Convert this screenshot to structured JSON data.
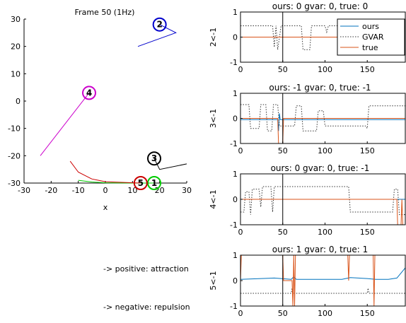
{
  "figure": {
    "note_positive": "-> positive: attraction",
    "note_negative": "-> negative: repulsion"
  },
  "chart_data": [
    {
      "type": "line",
      "title": "Frame 50 (1Hz)",
      "xlabel": "x",
      "ylabel": "",
      "xlim": [
        -30,
        30
      ],
      "ylim": [
        -30,
        30
      ],
      "xticks": [
        -30,
        -20,
        -10,
        0,
        10,
        20,
        30
      ],
      "yticks": [
        -30,
        -20,
        -10,
        0,
        10,
        20,
        30
      ],
      "agents": [
        {
          "id": "1",
          "color": "#00cc00",
          "position": [
            18,
            -30
          ],
          "trail": [
            [
              -10,
              -29
            ],
            [
              -5,
              -29.6
            ],
            [
              0,
              -29.9
            ],
            [
              10,
              -30
            ],
            [
              18,
              -30
            ]
          ]
        },
        {
          "id": "2",
          "color": "#0000cc",
          "position": [
            20,
            28
          ],
          "trail": [
            [
              12,
              20
            ],
            [
              26,
              25
            ],
            [
              20,
              28
            ]
          ]
        },
        {
          "id": "3",
          "color": "#000000",
          "position": [
            18,
            -21
          ],
          "trail": [
            [
              30,
              -23
            ],
            [
              20,
              -25
            ],
            [
              18,
              -21
            ]
          ]
        },
        {
          "id": "4",
          "color": "#cc00cc",
          "position": [
            -6,
            3
          ],
          "trail": [
            [
              -24,
              -20
            ],
            [
              -6,
              3
            ]
          ]
        },
        {
          "id": "5",
          "color": "#cc0000",
          "position": [
            13,
            -30
          ],
          "trail": [
            [
              -13,
              -22
            ],
            [
              -10,
              -26
            ],
            [
              -5,
              -28.5
            ],
            [
              0,
              -29.5
            ],
            [
              13,
              -30
            ]
          ]
        }
      ]
    },
    {
      "type": "line",
      "title": "ours: 0 gvar: 0, true: 0",
      "ylabel": "2<-1",
      "xlim": [
        0,
        195
      ],
      "ylim": [
        -1,
        1
      ],
      "xticks": [
        0,
        50,
        100,
        150
      ],
      "yticks": [
        -1,
        0,
        1
      ],
      "current_frame": 50,
      "legend": {
        "placement": "top-right",
        "entries": [
          "ours",
          "GVAR",
          "true"
        ]
      },
      "series": [
        {
          "name": "ours",
          "color": "#0072bd",
          "dash": "solid",
          "points": [
            [
              0,
              0
            ],
            [
              195,
              0
            ]
          ]
        },
        {
          "name": "GVAR",
          "color": "#333333",
          "dash": "dotted",
          "points": [
            [
              0,
              0.45
            ],
            [
              38,
              0.45
            ],
            [
              40,
              -0.4
            ],
            [
              42,
              0.45
            ],
            [
              44,
              -0.5
            ],
            [
              48,
              0.45
            ],
            [
              72,
              0.45
            ],
            [
              74,
              -0.5
            ],
            [
              82,
              -0.5
            ],
            [
              84,
              0.45
            ],
            [
              100,
              0.45
            ],
            [
              102,
              0.2
            ],
            [
              104,
              0.45
            ],
            [
              195,
              0.45
            ]
          ]
        },
        {
          "name": "true",
          "color": "#d95319",
          "dash": "solid",
          "points": [
            [
              0,
              0
            ],
            [
              195,
              0
            ]
          ]
        }
      ]
    },
    {
      "type": "line",
      "title": "ours: -1 gvar: 0, true: -1",
      "ylabel": "3<-1",
      "xlim": [
        0,
        195
      ],
      "ylim": [
        -1,
        1
      ],
      "xticks": [
        0,
        50,
        100,
        150
      ],
      "yticks": [
        -1,
        0,
        1
      ],
      "current_frame": 50,
      "series": [
        {
          "name": "ours",
          "color": "#0072bd",
          "dash": "solid",
          "points": [
            [
              0,
              -0.05
            ],
            [
              44,
              -0.05
            ],
            [
              45,
              -0.5
            ],
            [
              46,
              0.2
            ],
            [
              47,
              -0.05
            ],
            [
              195,
              -0.05
            ]
          ]
        },
        {
          "name": "GVAR",
          "color": "#333333",
          "dash": "dotted",
          "points": [
            [
              0,
              0.55
            ],
            [
              10,
              0.55
            ],
            [
              12,
              -0.4
            ],
            [
              22,
              -0.4
            ],
            [
              24,
              0.55
            ],
            [
              30,
              0.55
            ],
            [
              32,
              -0.5
            ],
            [
              37,
              -0.5
            ],
            [
              39,
              0.55
            ],
            [
              44,
              0.55
            ],
            [
              46,
              -0.3
            ],
            [
              64,
              -0.3
            ],
            [
              66,
              0.5
            ],
            [
              72,
              0.5
            ],
            [
              74,
              -0.5
            ],
            [
              90,
              -0.5
            ],
            [
              92,
              0.3
            ],
            [
              98,
              0.3
            ],
            [
              100,
              -0.3
            ],
            [
              148,
              -0.3
            ],
            [
              150,
              -0.4
            ],
            [
              152,
              0.5
            ],
            [
              195,
              0.5
            ]
          ]
        },
        {
          "name": "true",
          "color": "#d95319",
          "dash": "solid",
          "points": [
            [
              0,
              0
            ],
            [
              44,
              0
            ],
            [
              45,
              -1
            ],
            [
              50,
              -1
            ],
            [
              51,
              0
            ],
            [
              195,
              0
            ]
          ]
        }
      ]
    },
    {
      "type": "line",
      "title": "ours: 0 gvar: 0, true: -1",
      "ylabel": "4<-1",
      "xlim": [
        0,
        195
      ],
      "ylim": [
        -1,
        1
      ],
      "xticks": [
        0,
        50,
        100,
        150
      ],
      "yticks": [
        -1,
        0,
        1
      ],
      "current_frame": 50,
      "series": [
        {
          "name": "ours",
          "color": "#0072bd",
          "dash": "solid",
          "points": [
            [
              0,
              0
            ],
            [
              195,
              0
            ]
          ]
        },
        {
          "name": "GVAR",
          "color": "#333333",
          "dash": "dotted",
          "points": [
            [
              0,
              -0.5
            ],
            [
              4,
              -0.5
            ],
            [
              6,
              0.3
            ],
            [
              10,
              0.3
            ],
            [
              12,
              -0.6
            ],
            [
              14,
              0.4
            ],
            [
              22,
              0.4
            ],
            [
              24,
              -0.3
            ],
            [
              26,
              0.5
            ],
            [
              36,
              0.5
            ],
            [
              38,
              -0.5
            ],
            [
              40,
              0.5
            ],
            [
              128,
              0.5
            ],
            [
              130,
              -0.5
            ],
            [
              180,
              -0.5
            ],
            [
              182,
              0.4
            ],
            [
              186,
              0.4
            ],
            [
              188,
              -0.6
            ],
            [
              195,
              -0.6
            ]
          ]
        },
        {
          "name": "true",
          "color": "#d95319",
          "dash": "solid",
          "points": [
            [
              0,
              0
            ],
            [
              185,
              0
            ],
            [
              186,
              -1
            ],
            [
              190,
              -1
            ],
            [
              191,
              0
            ],
            [
              192,
              -1
            ],
            [
              195,
              -1
            ]
          ]
        }
      ]
    },
    {
      "type": "line",
      "title": "ours: 1 gvar: 0, true: 1",
      "ylabel": "5<-1",
      "xlim": [
        0,
        195
      ],
      "ylim": [
        -1,
        1
      ],
      "xticks": [
        0,
        50,
        100,
        150
      ],
      "yticks": [
        -1,
        0,
        1
      ],
      "current_frame": 50,
      "series": [
        {
          "name": "ours",
          "color": "#0072bd",
          "dash": "solid",
          "points": [
            [
              0,
              0.05
            ],
            [
              40,
              0.1
            ],
            [
              60,
              0.05
            ],
            [
              63,
              0.15
            ],
            [
              66,
              0.05
            ],
            [
              120,
              0.05
            ],
            [
              130,
              0.12
            ],
            [
              150,
              0.08
            ],
            [
              160,
              0.05
            ],
            [
              175,
              0.05
            ],
            [
              185,
              0.1
            ],
            [
              195,
              0.5
            ]
          ]
        },
        {
          "name": "GVAR",
          "color": "#333333",
          "dash": "dotted",
          "points": [
            [
              0,
              -0.5
            ],
            [
              60,
              -0.5
            ],
            [
              61,
              -0.3
            ],
            [
              62,
              -0.5
            ],
            [
              150,
              -0.5
            ],
            [
              151,
              -0.3
            ],
            [
              152,
              -0.5
            ],
            [
              195,
              -0.5
            ]
          ]
        },
        {
          "name": "true",
          "color": "#d95319",
          "dash": "solid",
          "points": [
            [
              0,
              0
            ],
            [
              1,
              1
            ],
            [
              50,
              1
            ],
            [
              51,
              0
            ],
            [
              61,
              0
            ],
            [
              62,
              -1
            ],
            [
              63,
              1
            ],
            [
              64,
              -1
            ],
            [
              65,
              1
            ],
            [
              127,
              1
            ],
            [
              128,
              0
            ],
            [
              129,
              1
            ],
            [
              157,
              1
            ],
            [
              158,
              -1
            ],
            [
              159,
              1
            ],
            [
              195,
              1
            ]
          ]
        }
      ]
    }
  ]
}
